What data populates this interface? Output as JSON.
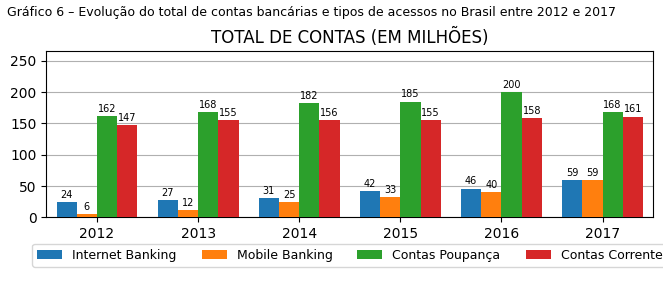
{
  "chart_data": {
    "type": "bar",
    "title": "TOTAL DE CONTAS (EM MILHÕES)",
    "subtitle": "Gráfico 6 – Evolução do total de contas bancárias e tipos de acessos no Brasil entre 2012 e 2017",
    "categories": [
      "2012",
      "2013",
      "2014",
      "2015",
      "2016",
      "2017"
    ],
    "series": [
      {
        "name": "Internet Banking",
        "values": [
          24,
          27,
          31,
          42,
          46,
          59
        ]
      },
      {
        "name": "Mobile Banking",
        "values": [
          6,
          12,
          25,
          33,
          40,
          59
        ]
      },
      {
        "name": "Contas Poupança",
        "values": [
          162,
          168,
          182,
          185,
          200,
          168
        ]
      },
      {
        "name": "Contas Corrente",
        "values": [
          147,
          155,
          156,
          155,
          158,
          161
        ]
      }
    ],
    "ylim": [
      0,
      265
    ],
    "yticks": [
      0,
      50,
      100,
      150,
      200,
      250
    ],
    "grid": true,
    "legend": "upper center",
    "data_labels": true
  }
}
